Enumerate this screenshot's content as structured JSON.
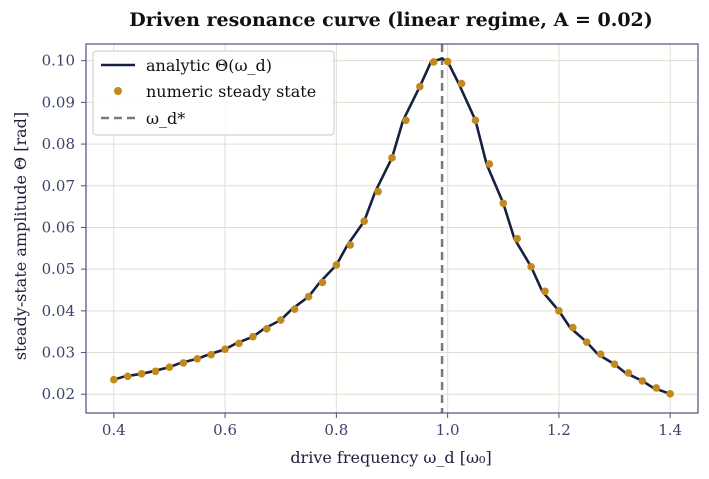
{
  "chart_data": {
    "type": "line",
    "title": "Driven resonance curve (linear regime, A = 0.02)",
    "xlabel": "drive frequency  ω_d  [ω₀]",
    "ylabel": "steady-state amplitude  Θ  [rad]",
    "xlim": [
      0.35,
      1.45
    ],
    "ylim": [
      0.0155,
      0.104
    ],
    "xticks": [
      "0.4",
      "0.6",
      "0.8",
      "1.0",
      "1.2",
      "1.4"
    ],
    "yticks": [
      "0.02",
      "0.03",
      "0.04",
      "0.05",
      "0.06",
      "0.07",
      "0.08",
      "0.09",
      "0.10"
    ],
    "grid": true,
    "legend_position": "top-left",
    "legend": [
      "analytic Θ(ω_d)",
      "numeric steady state",
      "ω_d*"
    ],
    "colors": {
      "analytic": "#16213f",
      "numeric": "#c28a1e",
      "resonance": "#7a7a7a"
    },
    "resonance_frequency": 0.99,
    "series": [
      {
        "name": "analytic Θ(ω_d)",
        "x": [
          0.4,
          0.42,
          0.45,
          0.47,
          0.5,
          0.52,
          0.55,
          0.57,
          0.6,
          0.62,
          0.65,
          0.67,
          0.7,
          0.72,
          0.75,
          0.77,
          0.8,
          0.82,
          0.85,
          0.87,
          0.9,
          0.92,
          0.95,
          0.97,
          0.99,
          1.0,
          1.02,
          1.05,
          1.07,
          1.1,
          1.12,
          1.15,
          1.17,
          1.2,
          1.22,
          1.25,
          1.27,
          1.3,
          1.32,
          1.35,
          1.37,
          1.4
        ],
        "y": [
          0.0235,
          0.0243,
          0.0249,
          0.0255,
          0.0265,
          0.0275,
          0.0285,
          0.0295,
          0.0308,
          0.0322,
          0.0338,
          0.0357,
          0.0378,
          0.0404,
          0.0434,
          0.0468,
          0.051,
          0.0558,
          0.0615,
          0.0686,
          0.0767,
          0.0857,
          0.0938,
          0.0997,
          0.1005,
          0.0998,
          0.0945,
          0.0857,
          0.0752,
          0.0658,
          0.0573,
          0.0506,
          0.0447,
          0.04,
          0.036,
          0.0325,
          0.0296,
          0.0272,
          0.0251,
          0.0232,
          0.0215,
          0.0201
        ]
      },
      {
        "name": "numeric steady state",
        "x": [
          0.4,
          0.425,
          0.45,
          0.475,
          0.5,
          0.525,
          0.55,
          0.575,
          0.6,
          0.625,
          0.65,
          0.675,
          0.7,
          0.725,
          0.75,
          0.775,
          0.8,
          0.825,
          0.85,
          0.875,
          0.9,
          0.925,
          0.95,
          0.975,
          1.0,
          1.025,
          1.05,
          1.075,
          1.1,
          1.125,
          1.15,
          1.175,
          1.2,
          1.225,
          1.25,
          1.275,
          1.3,
          1.325,
          1.35,
          1.375,
          1.4
        ],
        "y": [
          0.0235,
          0.0243,
          0.0249,
          0.0255,
          0.0265,
          0.0275,
          0.0285,
          0.0295,
          0.0308,
          0.0322,
          0.0338,
          0.0357,
          0.0378,
          0.0404,
          0.0434,
          0.0468,
          0.051,
          0.0558,
          0.0615,
          0.0686,
          0.0767,
          0.0857,
          0.0938,
          0.0997,
          0.0998,
          0.0945,
          0.0857,
          0.0752,
          0.0658,
          0.0573,
          0.0506,
          0.0447,
          0.04,
          0.036,
          0.0325,
          0.0296,
          0.0272,
          0.0251,
          0.0232,
          0.0215,
          0.0201
        ]
      }
    ]
  }
}
